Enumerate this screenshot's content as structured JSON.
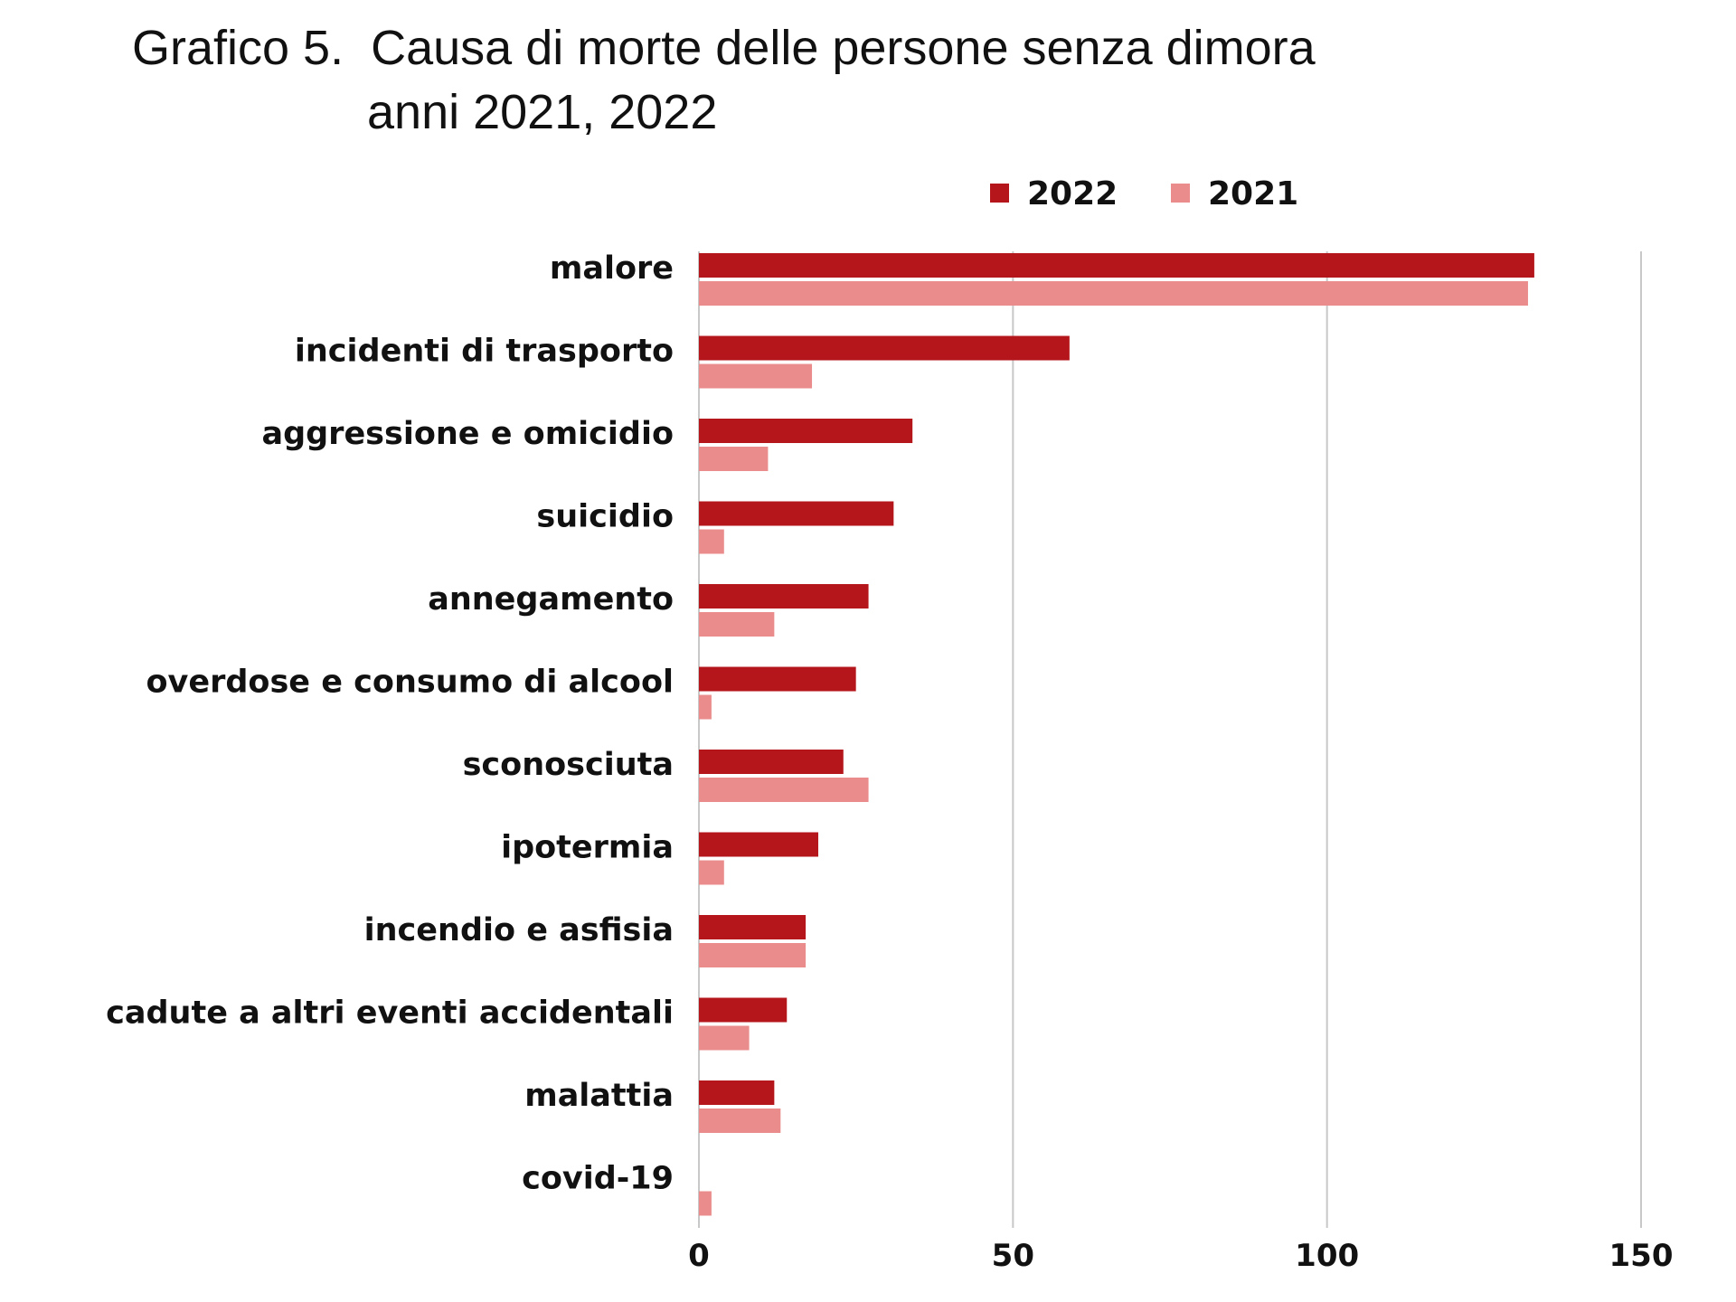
{
  "chart_data": {
    "type": "bar",
    "orientation": "horizontal",
    "title_line1": "Grafico 5.  Causa di morte delle persone senza dimora",
    "title_line2": "anni 2021, 2022",
    "categories": [
      "malore",
      "incidenti di trasporto",
      "aggressione e omicidio",
      "suicidio",
      "annegamento",
      "overdose e consumo di alcool",
      "sconosciuta",
      "ipotermia",
      "incendio e asfisia",
      "cadute a altri eventi accidentali",
      "malattia",
      "covid-19"
    ],
    "series": [
      {
        "name": "2022",
        "color": "#b5161b",
        "values": [
          133,
          59,
          34,
          31,
          27,
          25,
          23,
          19,
          17,
          14,
          12,
          0
        ]
      },
      {
        "name": "2021",
        "color": "#ea8c8b",
        "values": [
          132,
          18,
          11,
          4,
          12,
          2,
          27,
          4,
          17,
          8,
          13,
          2
        ]
      }
    ],
    "xlim": [
      0,
      150
    ],
    "xticks": [
      "0",
      "50",
      "100",
      "150"
    ],
    "grid": true,
    "legend_position": "top"
  }
}
